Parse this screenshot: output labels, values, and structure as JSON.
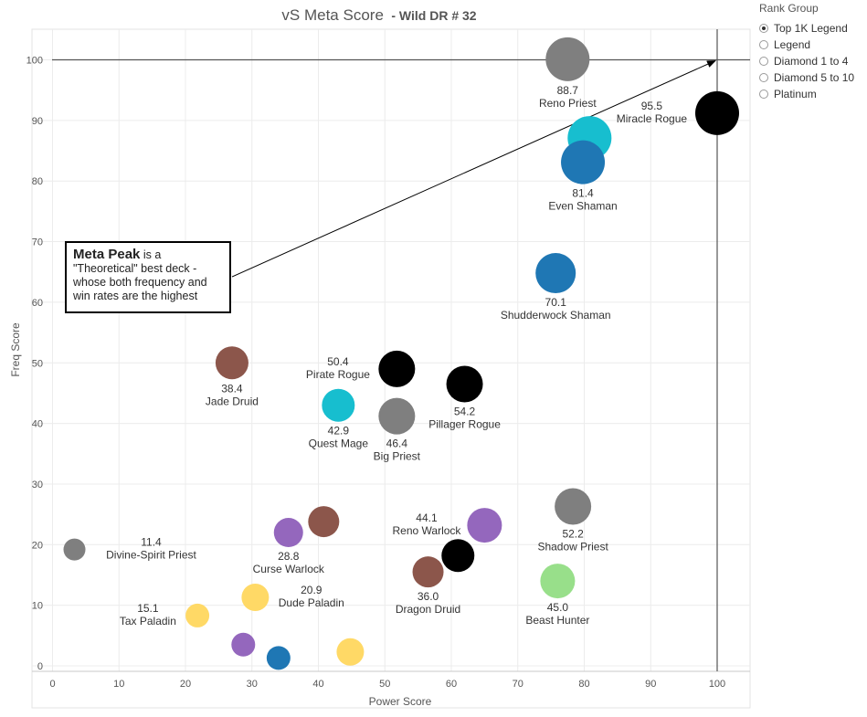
{
  "chart_data": {
    "type": "scatter",
    "title": "vS Meta Score",
    "subtitle": "- Wild DR # 32",
    "xlabel": "Power Score",
    "ylabel": "Freq Score",
    "xlim": [
      0,
      105
    ],
    "ylim": [
      -1,
      105
    ],
    "xticks": [
      0,
      10,
      20,
      30,
      40,
      50,
      60,
      70,
      80,
      90,
      100
    ],
    "yticks": [
      0,
      10,
      20,
      30,
      40,
      50,
      60,
      70,
      80,
      90,
      100
    ],
    "grid": true,
    "reference_lines": {
      "x": 100,
      "y": 100
    },
    "points": [
      {
        "x": 77.5,
        "y": 100.1,
        "r": 24,
        "color": "#7f7f7f",
        "value": "88.7",
        "label": "Reno Priest",
        "label_pos": "below"
      },
      {
        "x": 100,
        "y": 91.2,
        "r": 24,
        "color": "#000000",
        "value": "95.5",
        "label": "Miracle Rogue",
        "label_pos": "left"
      },
      {
        "x": 80.8,
        "y": 87.1,
        "r": 24,
        "color": "#17becf",
        "value": "",
        "label": "",
        "label_pos": "none"
      },
      {
        "x": 79.8,
        "y": 83.1,
        "r": 24,
        "color": "#1f77b4",
        "value": "81.4",
        "label": "Even Shaman",
        "label_pos": "below"
      },
      {
        "x": 75.7,
        "y": 64.8,
        "r": 22,
        "color": "#1f77b4",
        "value": "70.1",
        "label": "Shudderwock Shaman",
        "label_pos": "below"
      },
      {
        "x": 27.0,
        "y": 50.0,
        "r": 18,
        "color": "#8c564b",
        "value": "38.4",
        "label": "Jade Druid",
        "label_pos": "below"
      },
      {
        "x": 51.8,
        "y": 49.0,
        "r": 20,
        "color": "#000000",
        "value": "50.4",
        "label": "Pirate Rogue",
        "label_pos": "left"
      },
      {
        "x": 62.0,
        "y": 46.5,
        "r": 20,
        "color": "#000000",
        "value": "54.2",
        "label": "Pillager Rogue",
        "label_pos": "below"
      },
      {
        "x": 43.0,
        "y": 43.0,
        "r": 18,
        "color": "#17becf",
        "value": "42.9",
        "label": "Quest Mage",
        "label_pos": "below"
      },
      {
        "x": 51.8,
        "y": 41.2,
        "r": 20,
        "color": "#7f7f7f",
        "value": "46.4",
        "label": "Big Priest",
        "label_pos": "below"
      },
      {
        "x": 78.3,
        "y": 26.3,
        "r": 20,
        "color": "#7f7f7f",
        "value": "52.2",
        "label": "Shadow Priest",
        "label_pos": "below"
      },
      {
        "x": 40.8,
        "y": 23.8,
        "r": 17,
        "color": "#8c564b",
        "value": "",
        "label": "",
        "label_pos": "none"
      },
      {
        "x": 65.0,
        "y": 23.2,
        "r": 19,
        "color": "#9467bd",
        "value": "44.1",
        "label": "Reno Warlock",
        "label_pos": "left"
      },
      {
        "x": 35.5,
        "y": 22.0,
        "r": 16,
        "color": "#9467bd",
        "value": "28.8",
        "label": "Curse Warlock",
        "label_pos": "below"
      },
      {
        "x": 3.3,
        "y": 19.2,
        "r": 12,
        "color": "#7f7f7f",
        "value": "11.4",
        "label": "Divine-Spirit Priest",
        "label_pos": "right"
      },
      {
        "x": 61.0,
        "y": 18.2,
        "r": 18,
        "color": "#000000",
        "value": "",
        "label": "",
        "label_pos": "none"
      },
      {
        "x": 56.5,
        "y": 15.5,
        "r": 17,
        "color": "#8c564b",
        "value": "36.0",
        "label": "Dragon Druid",
        "label_pos": "below"
      },
      {
        "x": 76.0,
        "y": 14.0,
        "r": 19,
        "color": "#98df8a",
        "value": "45.0",
        "label": "Beast Hunter",
        "label_pos": "below"
      },
      {
        "x": 30.5,
        "y": 11.3,
        "r": 15,
        "color": "#ffd966",
        "value": "20.9",
        "label": "Dude Paladin",
        "label_pos": "right"
      },
      {
        "x": 21.8,
        "y": 8.3,
        "r": 13,
        "color": "#ffd966",
        "value": "15.1",
        "label": "Tax Paladin",
        "label_pos": "left"
      },
      {
        "x": 28.7,
        "y": 3.5,
        "r": 13,
        "color": "#9467bd",
        "value": "",
        "label": "",
        "label_pos": "none"
      },
      {
        "x": 44.8,
        "y": 2.3,
        "r": 15,
        "color": "#ffd966",
        "value": "",
        "label": "",
        "label_pos": "none"
      },
      {
        "x": 34.0,
        "y": 1.3,
        "r": 13,
        "color": "#1f77b4",
        "value": "",
        "label": "",
        "label_pos": "none"
      }
    ],
    "annotation": {
      "bold": "Meta Peak",
      "text": " is a \"Theoretical\" best deck - whose both frequency and win rates are the highest",
      "arrow_to": {
        "x": 100,
        "y": 100
      }
    }
  },
  "legend": {
    "title": "Rank Group",
    "items": [
      {
        "label": "Top 1K Legend",
        "checked": true
      },
      {
        "label": "Legend",
        "checked": false
      },
      {
        "label": "Diamond 1 to 4",
        "checked": false
      },
      {
        "label": "Diamond 5 to 10",
        "checked": false
      },
      {
        "label": "Platinum",
        "checked": false
      }
    ]
  }
}
